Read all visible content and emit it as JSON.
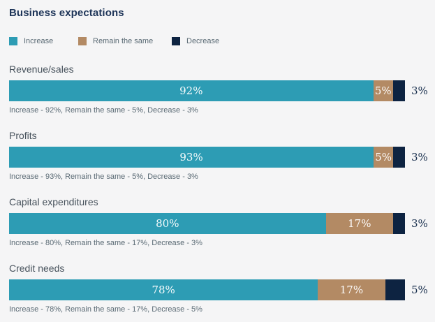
{
  "title": "Business expectations",
  "colors": {
    "background": "#f5f5f6",
    "increase": "#2d9cb4",
    "remain_same": "#b38a64",
    "decrease": "#0d2341",
    "title_text": "#1d3458",
    "heading_text": "#47525c",
    "caption_text": "#5a6a74",
    "outside_label_text": "#1c3250"
  },
  "legend": {
    "items": [
      {
        "label": "Increase",
        "key": "increase"
      },
      {
        "label": "Remain the same",
        "key": "remain_same"
      },
      {
        "label": "Decrease",
        "key": "decrease"
      }
    ]
  },
  "chart_data": {
    "type": "bar",
    "orientation": "horizontal-stacked",
    "title": "Business expectations",
    "categories": [
      "Revenue/sales",
      "Profits",
      "Capital expenditures",
      "Credit needs"
    ],
    "series": [
      {
        "name": "Increase",
        "values": [
          92,
          93,
          80,
          78
        ]
      },
      {
        "name": "Remain the same",
        "values": [
          5,
          5,
          17,
          17
        ]
      },
      {
        "name": "Decrease",
        "values": [
          3,
          3,
          3,
          5
        ]
      }
    ],
    "xlim": [
      0,
      100
    ],
    "grid": false,
    "legend_position": "top",
    "value_label_format": "percent"
  },
  "rows": [
    {
      "heading": "Revenue/sales",
      "increase": 92,
      "remain_same": 5,
      "decrease": 3,
      "increase_label": "92%",
      "remain_same_label": "5%",
      "decrease_label": "3%",
      "caption": "Increase - 92%, Remain the same - 5%, Decrease - 3%"
    },
    {
      "heading": "Profits",
      "increase": 93,
      "remain_same": 5,
      "decrease": 3,
      "increase_label": "93%",
      "remain_same_label": "5%",
      "decrease_label": "3%",
      "caption": "Increase - 93%, Remain the same - 5%, Decrease - 3%"
    },
    {
      "heading": "Capital expenditures",
      "increase": 80,
      "remain_same": 17,
      "decrease": 3,
      "increase_label": "80%",
      "remain_same_label": "17%",
      "decrease_label": "3%",
      "caption": "Increase - 80%, Remain the same - 17%, Decrease - 3%"
    },
    {
      "heading": "Credit needs",
      "increase": 78,
      "remain_same": 17,
      "decrease": 5,
      "increase_label": "78%",
      "remain_same_label": "17%",
      "decrease_label": "5%",
      "caption": "Increase - 78%, Remain the same - 17%, Decrease - 5%"
    }
  ]
}
